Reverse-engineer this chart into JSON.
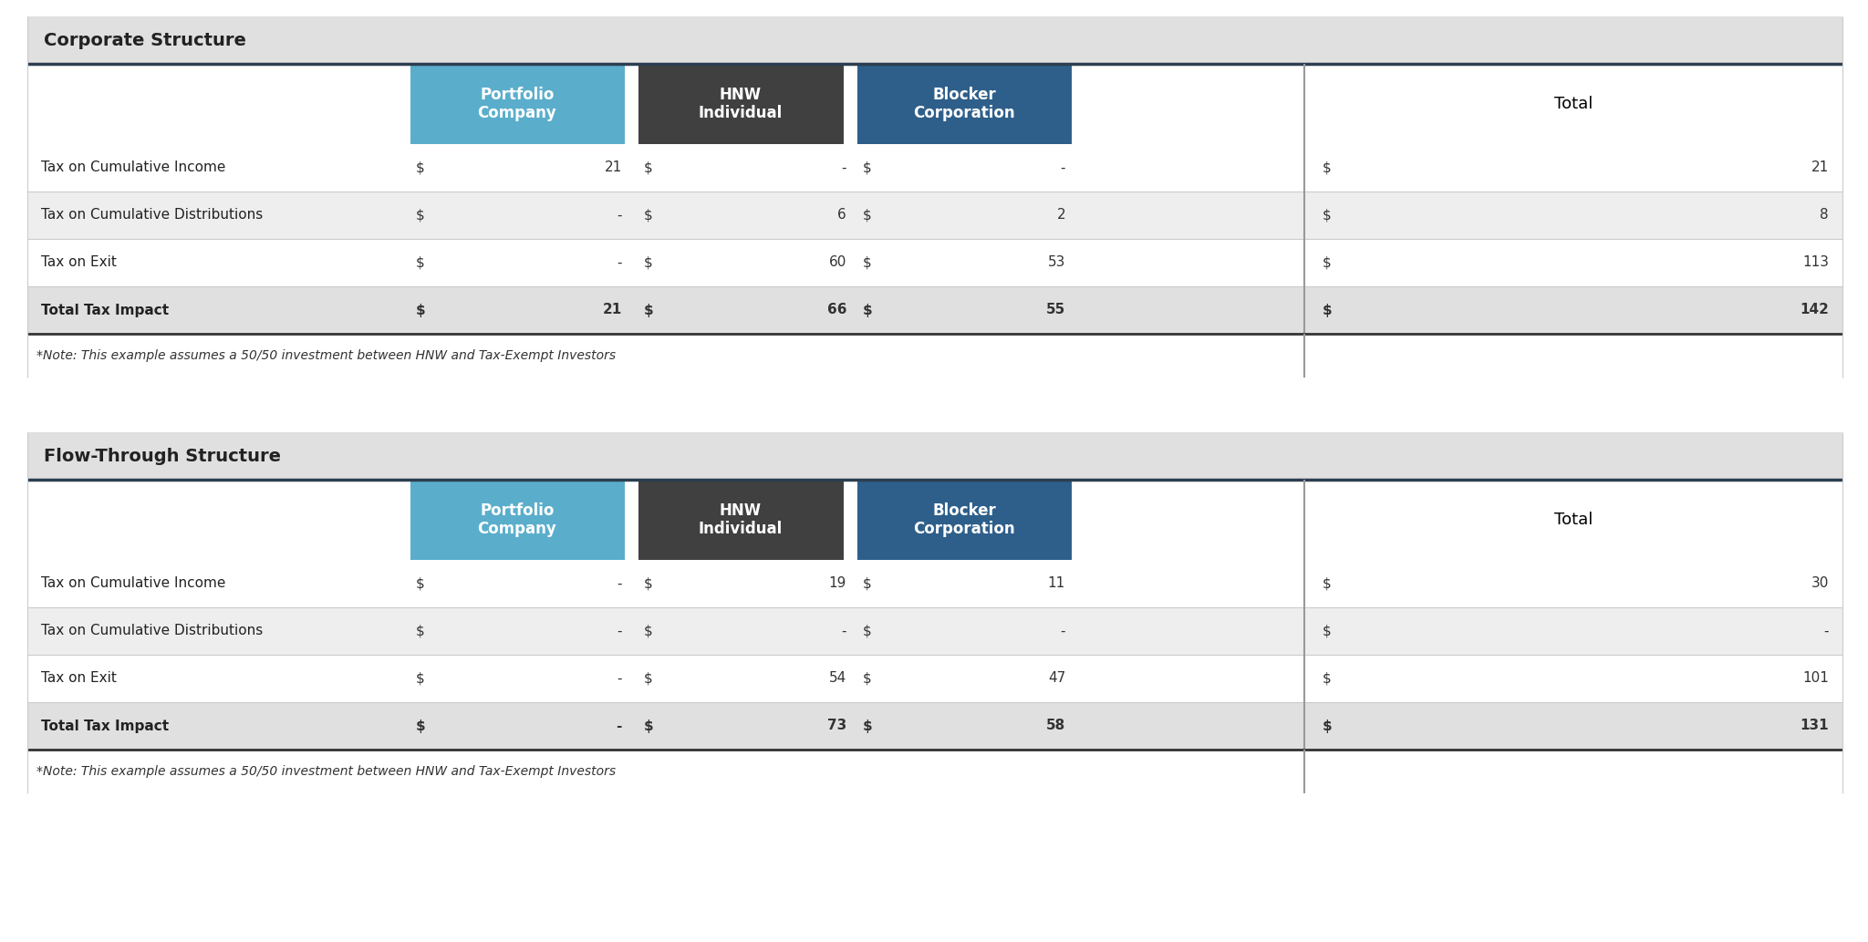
{
  "section1_title": "Corporate Structure",
  "section2_title": "Flow-Through Structure",
  "col_headers": [
    "Portfolio\nCompany",
    "HNW\nIndividual",
    "Blocker\nCorporation",
    "Total"
  ],
  "col_header_colors": [
    "#5aaecc",
    "#404040",
    "#2e5f8a",
    "#ffffff"
  ],
  "col_header_text_colors": [
    "#ffffff",
    "#ffffff",
    "#ffffff",
    "#000000"
  ],
  "row_labels": [
    "Tax on Cumulative Income",
    "Tax on Cumulative Distributions",
    "Tax on Exit",
    "Total Tax Impact"
  ],
  "note": "*Note: This example assumes a 50/50 investment between HNW and Tax-Exempt Investors",
  "corp_data": [
    [
      "$",
      "21",
      "$",
      "-",
      "$",
      "-",
      "$",
      "21"
    ],
    [
      "$",
      "-",
      "$",
      "6",
      "$",
      "2",
      "$",
      "8"
    ],
    [
      "$",
      "-",
      "$",
      "60",
      "$",
      "53",
      "$",
      "113"
    ],
    [
      "$",
      "21",
      "$",
      "66",
      "$",
      "55",
      "$",
      "142"
    ]
  ],
  "flow_data": [
    [
      "$",
      "-",
      "$",
      "19",
      "$",
      "11",
      "$",
      "30"
    ],
    [
      "$",
      "-",
      "$",
      "-",
      "$",
      "-",
      "$",
      "-"
    ],
    [
      "$",
      "-",
      "$",
      "54",
      "$",
      "47",
      "$",
      "101"
    ],
    [
      "$",
      "-",
      "$",
      "73",
      "$",
      "58",
      "$",
      "131"
    ]
  ],
  "bg_color": "#ffffff",
  "section_header_bg": "#e0e0e0",
  "border_color": "#2c3e50",
  "row_colors": [
    "#ffffff",
    "#eeeeee",
    "#ffffff",
    "#e0e0e0"
  ],
  "divider_color": "#999999",
  "font_size_section": 14,
  "font_size_header": 12,
  "font_size_data": 11,
  "font_size_note": 10,
  "pc_color": "#5aaecc",
  "hnw_color": "#404040",
  "bc_color": "#2e5f8a"
}
